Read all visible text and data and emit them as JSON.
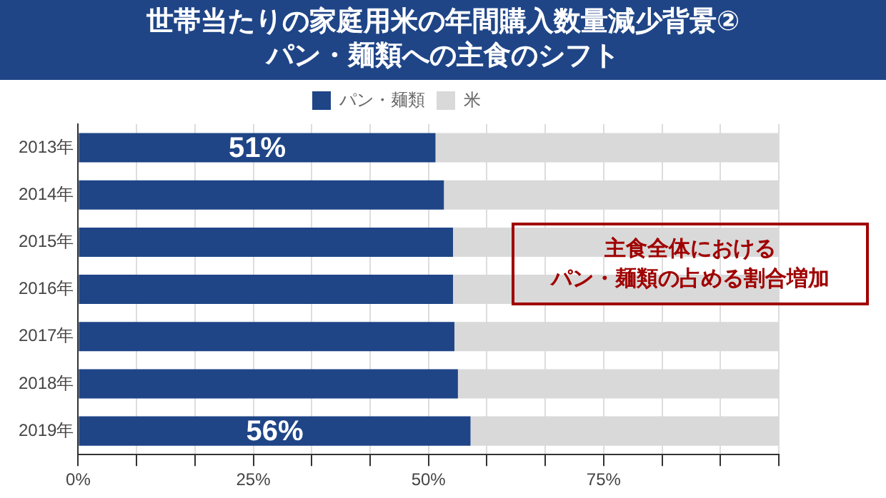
{
  "chart_data": {
    "type": "bar",
    "orientation": "horizontal",
    "stacked": true,
    "title": "世帯当たりの家庭用米の年間購入数量減少背景②\nパン・麺類への主食のシフト",
    "categories": [
      "2013年",
      "2014年",
      "2015年",
      "2016年",
      "2017年",
      "2018年",
      "2019年"
    ],
    "series": [
      {
        "name": "パン・麺類",
        "color": "#1f4587",
        "values": [
          51,
          52.2,
          53.5,
          53.5,
          53.7,
          54.2,
          56
        ],
        "value_labels": [
          "51%",
          null,
          null,
          null,
          null,
          null,
          "56%"
        ]
      },
      {
        "name": "米",
        "color": "#d9d9d9",
        "values": [
          49,
          47.8,
          46.5,
          46.5,
          46.3,
          45.8,
          44
        ]
      }
    ],
    "xlim": [
      0,
      100
    ],
    "xticks": [
      {
        "value": 0,
        "label": "0%"
      },
      {
        "value": 8.333,
        "label": null
      },
      {
        "value": 16.667,
        "label": null
      },
      {
        "value": 25,
        "label": "25%"
      },
      {
        "value": 33.333,
        "label": null
      },
      {
        "value": 41.667,
        "label": null
      },
      {
        "value": 50,
        "label": "50%"
      },
      {
        "value": 58.333,
        "label": null
      },
      {
        "value": 66.667,
        "label": null
      },
      {
        "value": 75,
        "label": "75%"
      },
      {
        "value": 83.333,
        "label": null
      },
      {
        "value": 91.667,
        "label": null
      },
      {
        "value": 100,
        "label": null
      }
    ],
    "grid": "x",
    "legend": "top",
    "annotations": [
      "主食全体における",
      "パン・麺類の占める割合増加"
    ]
  }
}
